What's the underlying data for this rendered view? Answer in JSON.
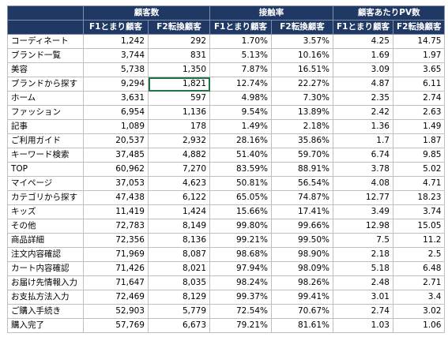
{
  "table": {
    "groups": [
      {
        "label": "顧客数"
      },
      {
        "label": "接触率"
      },
      {
        "label": "顧客あたりPV数"
      }
    ],
    "subheaders": [
      "F1とまり顧客",
      "F2転換顧客",
      "F1とまり顧客",
      "F2転換顧客",
      "F1とまり顧客",
      "F2転換顧客"
    ],
    "rows": [
      {
        "name": "コーディネート",
        "values": [
          "1,242",
          "292",
          "1.70%",
          "3.57%",
          "4.25",
          "14.75"
        ]
      },
      {
        "name": "ブランド一覧",
        "values": [
          "3,744",
          "831",
          "5.13%",
          "10.16%",
          "1.69",
          "1.97"
        ]
      },
      {
        "name": "美容",
        "values": [
          "5,738",
          "1,350",
          "7.87%",
          "16.51%",
          "3.09",
          "3.65"
        ]
      },
      {
        "name": "ブランドから探す",
        "values": [
          "9,294",
          "1,821",
          "12.74%",
          "22.27%",
          "4.87",
          "6.11"
        ]
      },
      {
        "name": "ホーム",
        "values": [
          "3,631",
          "597",
          "4.98%",
          "7.30%",
          "2.35",
          "2.74"
        ]
      },
      {
        "name": "ファッション",
        "values": [
          "6,954",
          "1,136",
          "9.54%",
          "13.89%",
          "2.42",
          "2.63"
        ]
      },
      {
        "name": "記事",
        "values": [
          "1,089",
          "178",
          "1.49%",
          "2.18%",
          "1.36",
          "1.49"
        ]
      },
      {
        "name": "ご利用ガイド",
        "values": [
          "20,537",
          "2,932",
          "28.16%",
          "35.86%",
          "1.7",
          "1.87"
        ]
      },
      {
        "name": "キーワード検索",
        "values": [
          "37,485",
          "4,882",
          "51.40%",
          "59.70%",
          "6.74",
          "9.85"
        ]
      },
      {
        "name": "TOP",
        "values": [
          "60,962",
          "7,270",
          "83.59%",
          "88.91%",
          "3.78",
          "5.02"
        ]
      },
      {
        "name": "マイページ",
        "values": [
          "37,053",
          "4,623",
          "50.81%",
          "56.54%",
          "4.08",
          "4.71"
        ]
      },
      {
        "name": "カテゴリから探す",
        "values": [
          "47,438",
          "6,122",
          "65.05%",
          "74.87%",
          "12.77",
          "18.23"
        ]
      },
      {
        "name": "キッズ",
        "values": [
          "11,419",
          "1,424",
          "15.66%",
          "17.41%",
          "3.49",
          "3.74"
        ]
      },
      {
        "name": "その他",
        "values": [
          "72,783",
          "8,149",
          "99.80%",
          "99.66%",
          "12.98",
          "15.05"
        ]
      },
      {
        "name": "商品詳細",
        "values": [
          "72,356",
          "8,136",
          "99.21%",
          "99.50%",
          "7.5",
          "11.2"
        ]
      },
      {
        "name": "注文内容確認",
        "values": [
          "71,969",
          "8,087",
          "98.68%",
          "98.90%",
          "2.18",
          "2.5"
        ]
      },
      {
        "name": "カート内容確認",
        "values": [
          "71,426",
          "8,021",
          "97.94%",
          "98.09%",
          "5.18",
          "6.48"
        ]
      },
      {
        "name": "お届け先情報入力",
        "values": [
          "71,647",
          "8,035",
          "98.24%",
          "98.26%",
          "2.48",
          "2.71"
        ]
      },
      {
        "name": "お支払方法入力",
        "values": [
          "72,469",
          "8,129",
          "99.37%",
          "99.41%",
          "3.01",
          "3.4"
        ]
      },
      {
        "name": "ご購入手続き",
        "values": [
          "52,903",
          "5,779",
          "72.54%",
          "70.67%",
          "2.74",
          "3.02"
        ]
      },
      {
        "name": "購入完了",
        "values": [
          "57,769",
          "6,673",
          "79.21%",
          "81.61%",
          "1.03",
          "1.06"
        ]
      }
    ],
    "selected_cell": {
      "row": 3,
      "col": 1
    }
  }
}
